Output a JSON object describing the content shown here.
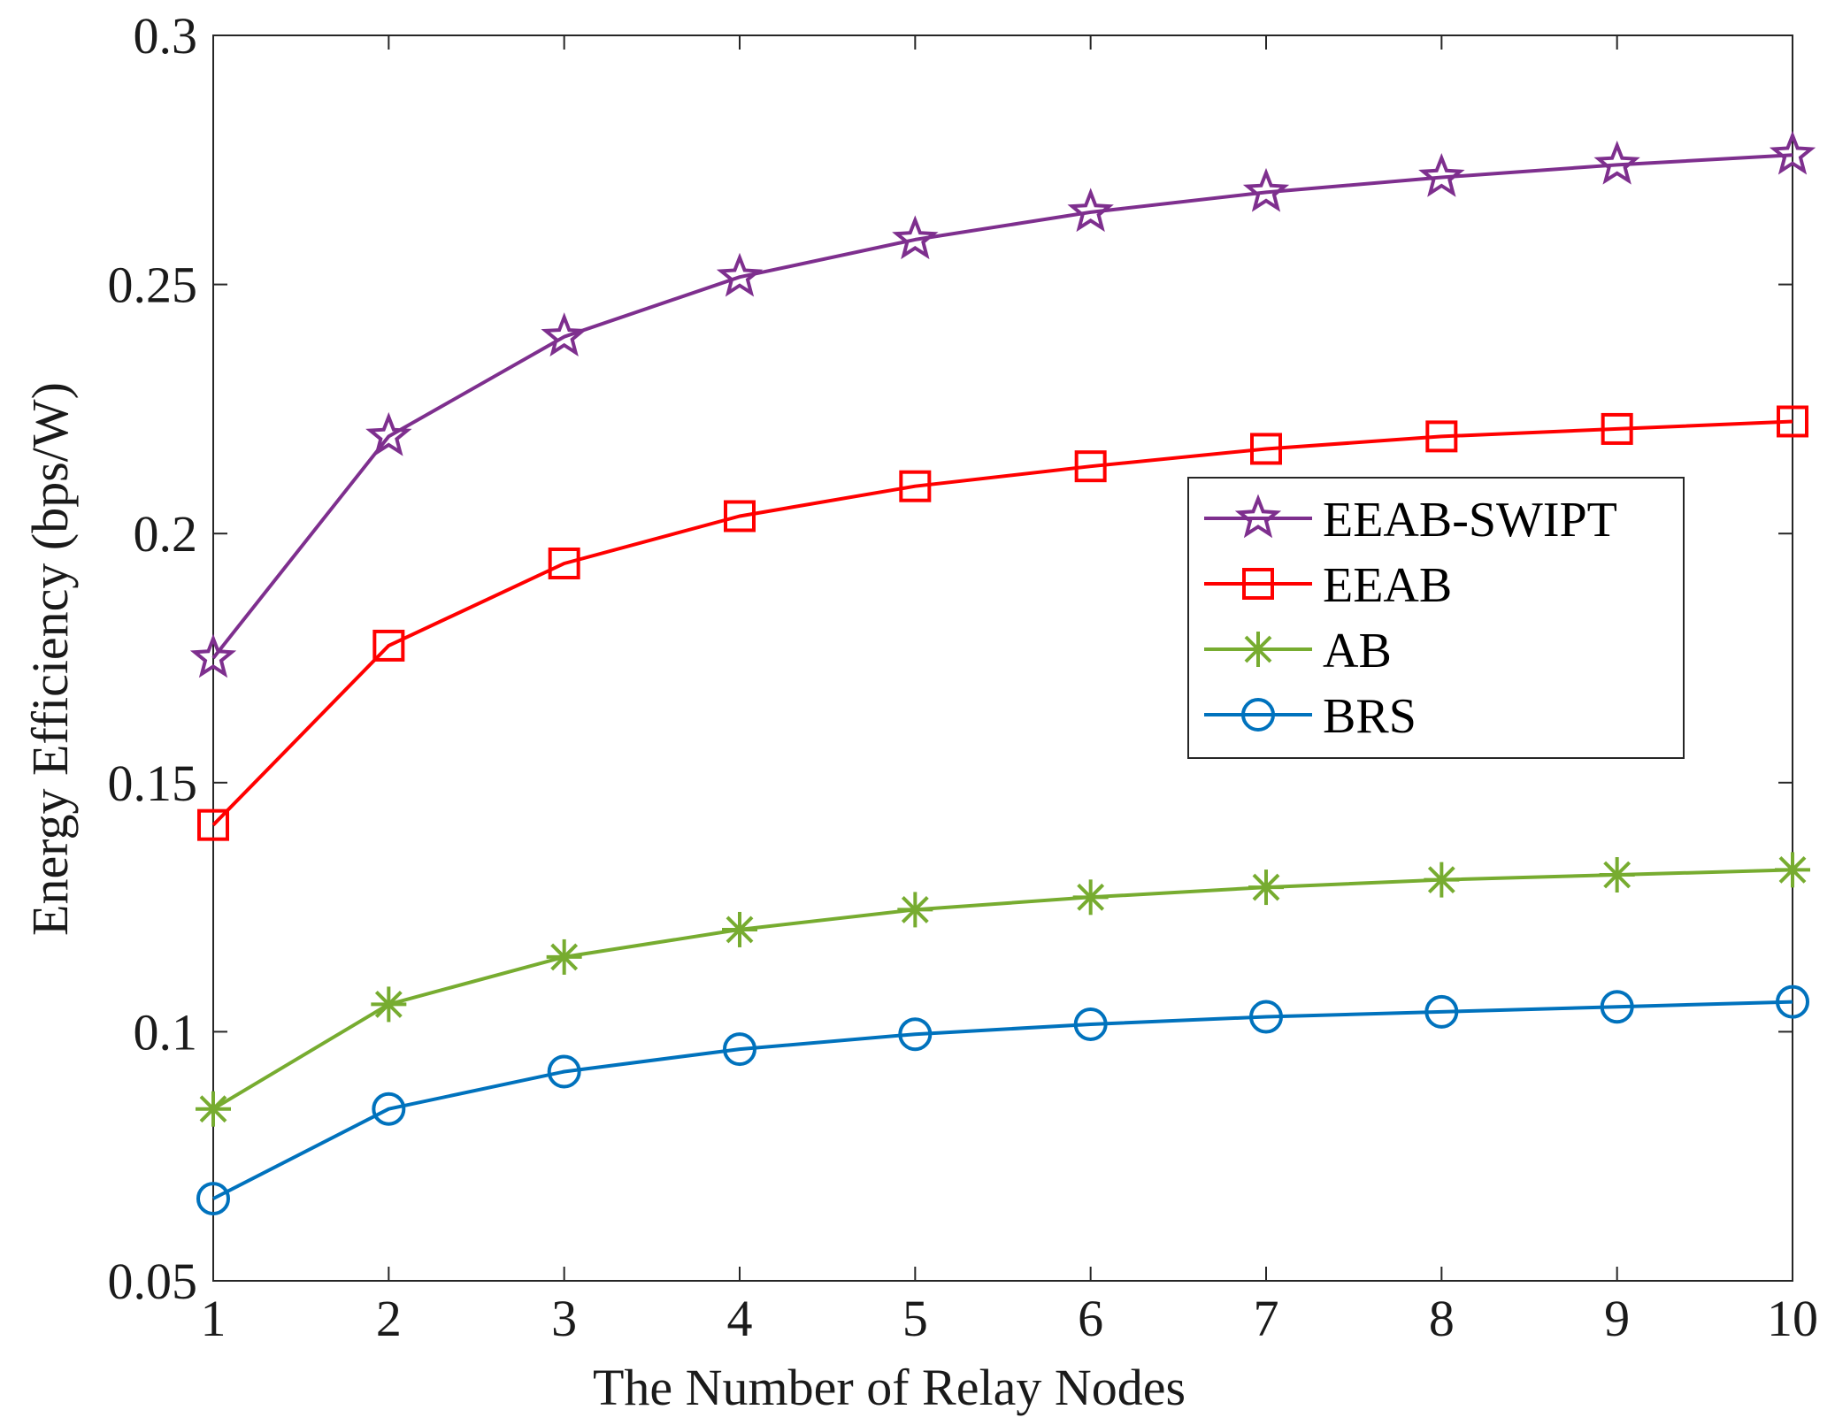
{
  "chart_data": {
    "type": "line",
    "title": "",
    "xlabel": "The Number of Relay Nodes",
    "ylabel": "Energy Efficiency (bps/W)",
    "xlim": [
      1,
      10
    ],
    "ylim": [
      0.05,
      0.3
    ],
    "x": [
      1,
      2,
      3,
      4,
      5,
      6,
      7,
      8,
      9,
      10
    ],
    "x_ticks": [
      "1",
      "2",
      "3",
      "4",
      "5",
      "6",
      "7",
      "8",
      "9",
      "10"
    ],
    "y_ticks": [
      "0.05",
      "0.1",
      "0.15",
      "0.2",
      "0.25",
      "0.3"
    ],
    "y_tick_values": [
      0.05,
      0.1,
      0.15,
      0.2,
      0.25,
      0.3
    ],
    "grid": false,
    "legend_position": "center-right",
    "series": [
      {
        "name": "EEAB-SWIPT",
        "color": "#7e2f8e",
        "marker": "star",
        "values": [
          0.175,
          0.2195,
          0.2395,
          0.2515,
          0.259,
          0.2645,
          0.2685,
          0.2715,
          0.274,
          0.276
        ]
      },
      {
        "name": "EEAB",
        "color": "#ff0000",
        "marker": "square",
        "values": [
          0.1415,
          0.1775,
          0.194,
          0.2035,
          0.2095,
          0.2135,
          0.217,
          0.2195,
          0.221,
          0.2225
        ]
      },
      {
        "name": "AB",
        "color": "#77ac30",
        "marker": "asterisk",
        "values": [
          0.0845,
          0.1055,
          0.115,
          0.1205,
          0.1245,
          0.127,
          0.129,
          0.1305,
          0.1315,
          0.1325
        ]
      },
      {
        "name": "BRS",
        "color": "#0072bd",
        "marker": "circle",
        "values": [
          0.0665,
          0.0845,
          0.092,
          0.0965,
          0.0995,
          0.1015,
          0.103,
          0.104,
          0.105,
          0.106
        ]
      }
    ]
  }
}
